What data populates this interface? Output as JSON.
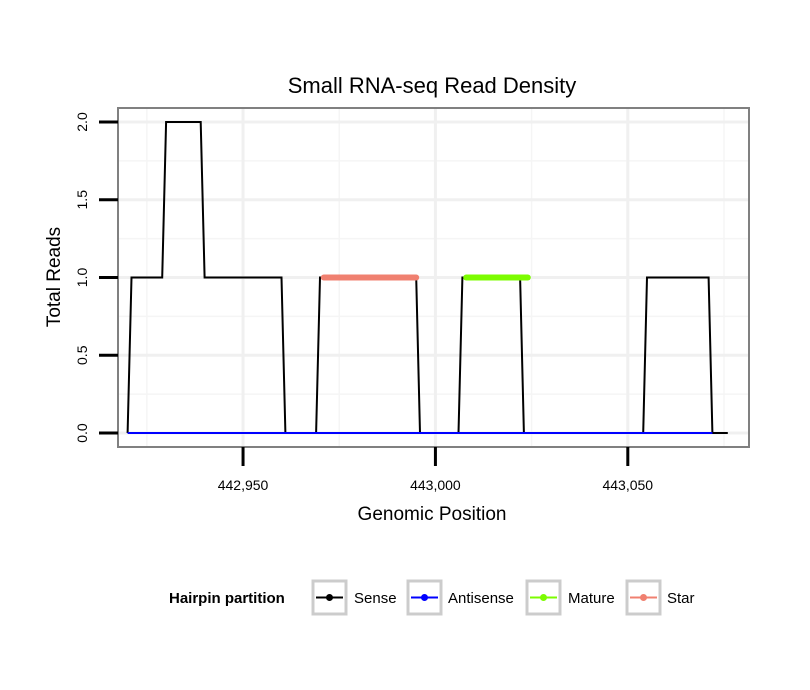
{
  "chart_data": {
    "type": "line",
    "title": "Small RNA-seq Read Density",
    "xlabel": "Genomic Position",
    "ylabel": "Total Reads",
    "xlim": [
      442917.5,
      443081.5
    ],
    "ylim": [
      -0.09,
      2.09
    ],
    "x_ticks": [
      {
        "value": 442950,
        "label": "442,950"
      },
      {
        "value": 443000,
        "label": "443,000"
      },
      {
        "value": 443050,
        "label": "443,050"
      }
    ],
    "y_ticks": [
      {
        "value": 0,
        "label": "0.0"
      },
      {
        "value": 0.5,
        "label": "0.5"
      },
      {
        "value": 1,
        "label": "1.0"
      },
      {
        "value": 1.5,
        "label": "1.5"
      },
      {
        "value": 2,
        "label": "2.0"
      }
    ],
    "grid": true,
    "legend": {
      "title": "Hairpin partition",
      "position": "bottom",
      "entries": [
        "Sense",
        "Antisense",
        "Mature",
        "Star"
      ]
    },
    "series": [
      {
        "name": "Sense",
        "color": "#000000",
        "x": [
          442920,
          442921,
          442929,
          442930,
          442939,
          442940,
          442951,
          442952,
          442960,
          442961,
          442969,
          442970,
          442995,
          442996,
          443002,
          443003,
          443006,
          443007,
          443022,
          443023,
          443045,
          443046,
          443054,
          443055,
          443071,
          443072,
          443076
        ],
        "y": [
          0,
          1,
          1,
          2,
          2,
          1,
          1,
          1,
          1,
          0,
          0,
          1,
          1,
          0,
          0,
          0,
          0,
          1,
          1,
          0,
          0,
          0,
          0,
          1,
          1,
          0,
          0
        ]
      },
      {
        "name": "Antisense",
        "color": "#0000ff",
        "x": [
          442920,
          443072
        ],
        "y": [
          0,
          0
        ]
      },
      {
        "name": "Mature",
        "color": "#7cfc00",
        "x": [
          443008,
          443024
        ],
        "y": [
          1,
          1
        ]
      },
      {
        "name": "Star",
        "color": "#f08070",
        "x": [
          442971,
          442995
        ],
        "y": [
          1,
          1
        ]
      }
    ]
  }
}
